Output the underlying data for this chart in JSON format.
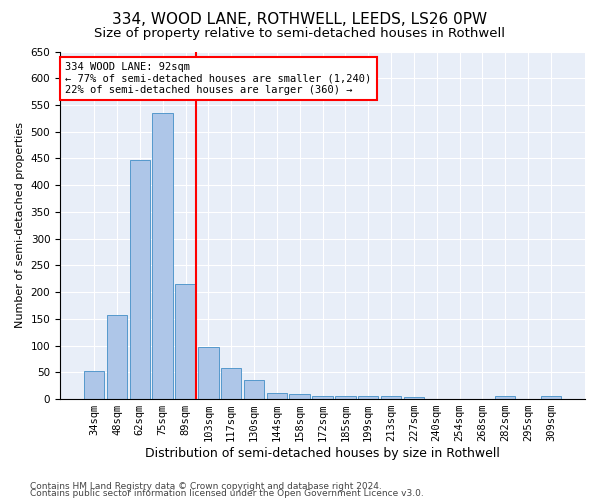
{
  "title1": "334, WOOD LANE, ROTHWELL, LEEDS, LS26 0PW",
  "title2": "Size of property relative to semi-detached houses in Rothwell",
  "xlabel": "Distribution of semi-detached houses by size in Rothwell",
  "ylabel": "Number of semi-detached properties",
  "footnote1": "Contains HM Land Registry data © Crown copyright and database right 2024.",
  "footnote2": "Contains public sector information licensed under the Open Government Licence v3.0.",
  "categories": [
    "34sqm",
    "48sqm",
    "62sqm",
    "75sqm",
    "89sqm",
    "103sqm",
    "117sqm",
    "130sqm",
    "144sqm",
    "158sqm",
    "172sqm",
    "185sqm",
    "199sqm",
    "213sqm",
    "227sqm",
    "240sqm",
    "254sqm",
    "268sqm",
    "282sqm",
    "295sqm",
    "309sqm"
  ],
  "values": [
    52,
    157,
    448,
    535,
    215,
    98,
    58,
    35,
    11,
    10,
    5,
    5,
    5,
    5,
    4,
    0,
    0,
    0,
    5,
    0,
    5
  ],
  "bar_color": "#aec6e8",
  "bar_edge_color": "#5599cc",
  "vline_x_index": 4,
  "vline_color": "red",
  "annotation_line1": "334 WOOD LANE: 92sqm",
  "annotation_line2": "← 77% of semi-detached houses are smaller (1,240)",
  "annotation_line3": "22% of semi-detached houses are larger (360) →",
  "annotation_box_color": "white",
  "annotation_box_edge": "red",
  "ylim": [
    0,
    650
  ],
  "yticks": [
    0,
    50,
    100,
    150,
    200,
    250,
    300,
    350,
    400,
    450,
    500,
    550,
    600,
    650
  ],
  "background_color": "#e8eef8",
  "grid_color": "white",
  "title1_fontsize": 11,
  "title2_fontsize": 9.5,
  "xlabel_fontsize": 9,
  "ylabel_fontsize": 8,
  "tick_fontsize": 7.5,
  "footnote_fontsize": 6.5,
  "annotation_fontsize": 7.5
}
